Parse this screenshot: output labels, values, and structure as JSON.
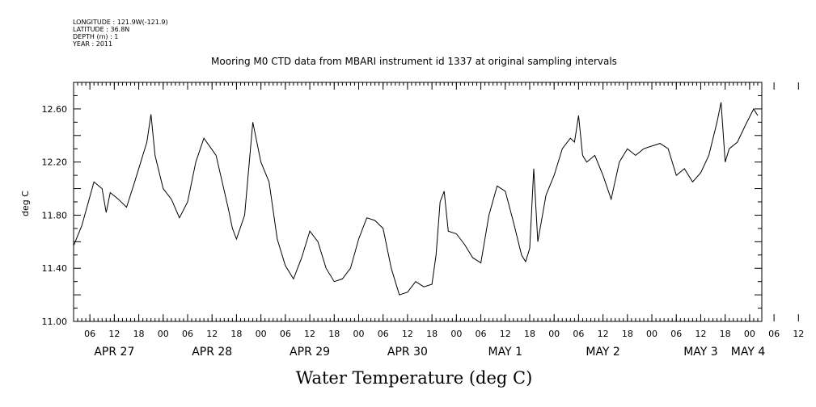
{
  "meta": {
    "longitude": "LONGITUDE : 121.9W(-121.9)",
    "latitude": "LATITUDE : 36.8N",
    "depth": "DEPTH (m) : 1",
    "year": "YEAR : 2011"
  },
  "chart_data": {
    "type": "line",
    "title": "Mooring M0 CTD data from MBARI instrument id 1337 at original sampling intervals",
    "xlabel": "Water Temperature (deg C)",
    "ylabel": "deg C",
    "ylim": [
      11.0,
      12.8
    ],
    "xlim": [
      "2011-04-27T02:00",
      "2011-05-04T03:00"
    ],
    "yticks": [
      "11.00",
      "11.40",
      "11.80",
      "12.20",
      "12.60"
    ],
    "hour_ticks": [
      "06",
      "12",
      "18",
      "00",
      "06",
      "12",
      "18",
      "00",
      "06",
      "12",
      "18",
      "00",
      "06",
      "12",
      "18",
      "00",
      "06",
      "12",
      "18",
      "00",
      "06",
      "12",
      "18",
      "00",
      "06",
      "12",
      "18",
      "00",
      "06",
      "12",
      "18",
      "00"
    ],
    "day_labels": [
      "APR 27",
      "APR 28",
      "APR 29",
      "APR 30",
      "MAY 1",
      "MAY 2",
      "MAY 3",
      "MAY 4"
    ],
    "grid": false,
    "series": [
      {
        "color": "#000000",
        "x": [
          "2011-04-27T02:00",
          "2011-04-27T04:00",
          "2011-04-27T07:00",
          "2011-04-27T09:00",
          "2011-04-27T10:00",
          "2011-04-27T11:00",
          "2011-04-27T13:00",
          "2011-04-27T15:00",
          "2011-04-27T17:00",
          "2011-04-27T20:00",
          "2011-04-27T21:00",
          "2011-04-27T22:00",
          "2011-04-28T00:00",
          "2011-04-28T02:00",
          "2011-04-28T04:00",
          "2011-04-28T06:00",
          "2011-04-28T08:00",
          "2011-04-28T10:00",
          "2011-04-28T13:00",
          "2011-04-28T16:00",
          "2011-04-28T17:00",
          "2011-04-28T18:00",
          "2011-04-28T20:00",
          "2011-04-28T22:00",
          "2011-04-29T00:00",
          "2011-04-29T02:00",
          "2011-04-29T04:00",
          "2011-04-29T06:00",
          "2011-04-29T08:00",
          "2011-04-29T10:00",
          "2011-04-29T12:00",
          "2011-04-29T14:00",
          "2011-04-29T16:00",
          "2011-04-29T18:00",
          "2011-04-29T20:00",
          "2011-04-29T22:00",
          "2011-04-30T00:00",
          "2011-04-30T02:00",
          "2011-04-30T04:00",
          "2011-04-30T06:00",
          "2011-04-30T08:00",
          "2011-04-30T10:00",
          "2011-04-30T12:00",
          "2011-04-30T14:00",
          "2011-04-30T16:00",
          "2011-04-30T18:00",
          "2011-04-30T19:00",
          "2011-04-30T20:00",
          "2011-04-30T21:00",
          "2011-04-30T22:00",
          "2011-05-01T00:00",
          "2011-05-01T02:00",
          "2011-05-01T04:00",
          "2011-05-01T06:00",
          "2011-05-01T08:00",
          "2011-05-01T10:00",
          "2011-05-01T12:00",
          "2011-05-01T14:00",
          "2011-05-01T16:00",
          "2011-05-01T17:00",
          "2011-05-01T18:00",
          "2011-05-01T19:00",
          "2011-05-01T20:00",
          "2011-05-01T22:00",
          "2011-05-02T00:00",
          "2011-05-02T02:00",
          "2011-05-02T04:00",
          "2011-05-02T05:00",
          "2011-05-02T06:00",
          "2011-05-02T07:00",
          "2011-05-02T08:00",
          "2011-05-02T10:00",
          "2011-05-02T12:00",
          "2011-05-02T14:00",
          "2011-05-02T16:00",
          "2011-05-02T18:00",
          "2011-05-02T20:00",
          "2011-05-02T22:00",
          "2011-05-03T00:00",
          "2011-05-03T02:00",
          "2011-05-03T04:00",
          "2011-05-03T06:00",
          "2011-05-03T08:00",
          "2011-05-03T10:00",
          "2011-05-03T12:00",
          "2011-05-03T14:00",
          "2011-05-03T16:00",
          "2011-05-03T17:00",
          "2011-05-03T18:00",
          "2011-05-03T19:00",
          "2011-05-03T21:00",
          "2011-05-03T23:00",
          "2011-05-04T01:00",
          "2011-05-04T02:00"
        ],
        "values": [
          11.57,
          11.72,
          12.05,
          12.0,
          11.82,
          11.97,
          11.92,
          11.86,
          12.05,
          12.35,
          12.56,
          12.25,
          12.0,
          11.92,
          11.78,
          11.9,
          12.2,
          12.38,
          12.25,
          11.85,
          11.7,
          11.62,
          11.8,
          12.5,
          12.2,
          12.05,
          11.62,
          11.42,
          11.32,
          11.48,
          11.68,
          11.6,
          11.4,
          11.3,
          11.32,
          11.4,
          11.62,
          11.78,
          11.76,
          11.7,
          11.4,
          11.2,
          11.22,
          11.3,
          11.26,
          11.28,
          11.5,
          11.9,
          11.98,
          11.68,
          11.66,
          11.58,
          11.48,
          11.44,
          11.8,
          12.02,
          11.98,
          11.75,
          11.5,
          11.45,
          11.55,
          12.15,
          11.6,
          11.95,
          12.1,
          12.3,
          12.38,
          12.35,
          12.55,
          12.25,
          12.2,
          12.25,
          12.1,
          11.92,
          12.2,
          12.3,
          12.25,
          12.3,
          12.32,
          12.34,
          12.3,
          12.1,
          12.15,
          12.05,
          12.12,
          12.25,
          12.5,
          12.65,
          12.2,
          12.3,
          12.35,
          12.48,
          12.6,
          12.55
        ]
      }
    ]
  }
}
